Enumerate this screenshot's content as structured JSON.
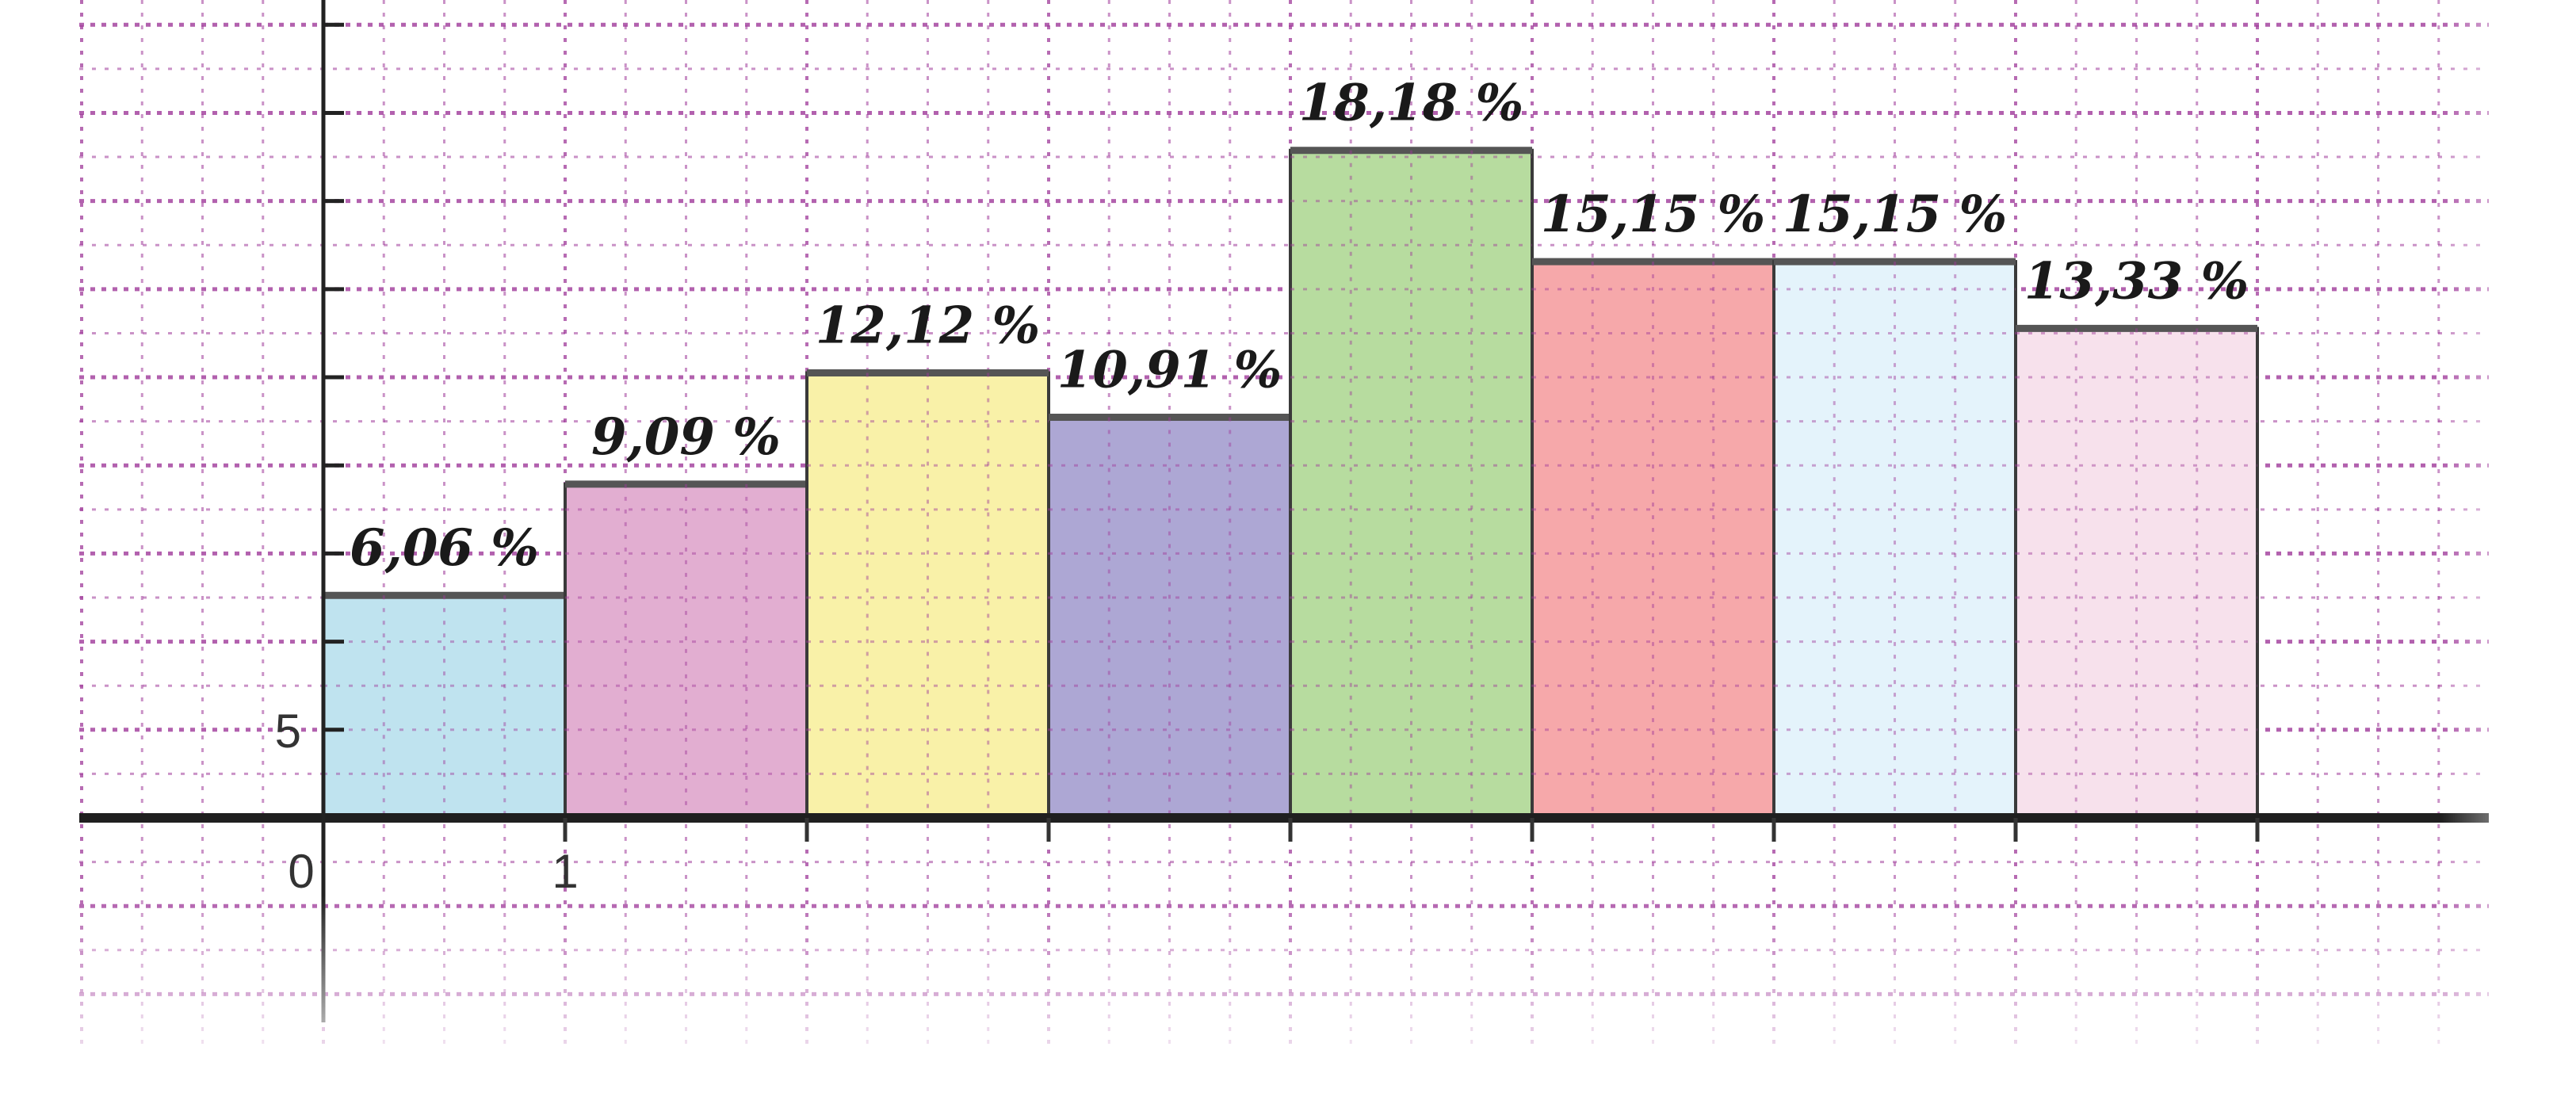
{
  "chart_data": {
    "type": "bar",
    "x_ticks": [
      "0",
      "1"
    ],
    "y_ticks": [
      "5"
    ],
    "values": [
      6.06,
      9.09,
      12.12,
      10.91,
      18.18,
      15.15,
      15.15,
      13.33
    ],
    "data_labels": [
      "6,06 %",
      "9,09 %",
      "12,12 %",
      "10,91 %",
      "18,18 %",
      "15,15 %",
      "15,15 %",
      "13,33 %"
    ],
    "colors": [
      "#bfe3ef",
      "#e2aed1",
      "#f9f1a8",
      "#ada7d4",
      "#b7dc9f",
      "#f6a8aa",
      "#e4f3fb",
      "#f7e1ec"
    ],
    "xlim": [
      0,
      8.9
    ],
    "ylim": [
      -5,
      22.3
    ],
    "grid": true,
    "grid_color": "#a03a9a"
  }
}
